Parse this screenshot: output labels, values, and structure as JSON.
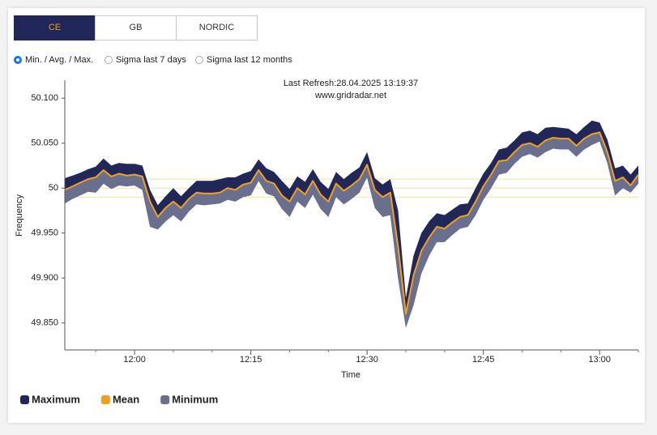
{
  "tabs": [
    "CE",
    "GB",
    "NORDIC"
  ],
  "options": [
    "Min. / Avg. / Max.",
    "Sigma last 7 days",
    "Sigma last 12 months"
  ],
  "chart_data": {
    "type": "band",
    "annotations": [
      "Last Refresh:28.04.2025 13:19:37",
      "www.gridradar.net"
    ],
    "xlabel": "Time",
    "ylabel": "Frequency",
    "x": [
      "11:51",
      "11:52",
      "11:53",
      "11:54",
      "11:55",
      "11:56",
      "11:57",
      "11:58",
      "11:59",
      "12:00",
      "12:01",
      "12:02",
      "12:03",
      "12:04",
      "12:05",
      "12:06",
      "12:07",
      "12:08",
      "12:09",
      "12:10",
      "12:11",
      "12:12",
      "12:13",
      "12:14",
      "12:15",
      "12:16",
      "12:17",
      "12:18",
      "12:19",
      "12:20",
      "12:21",
      "12:22",
      "12:23",
      "12:24",
      "12:25",
      "12:26",
      "12:27",
      "12:28",
      "12:29",
      "12:30",
      "12:31",
      "12:32",
      "12:33",
      "12:34",
      "12:35",
      "12:36",
      "12:37",
      "12:38",
      "12:39",
      "12:40",
      "12:41",
      "12:42",
      "12:43",
      "12:44",
      "12:45",
      "12:46",
      "12:47",
      "12:48",
      "12:49",
      "12:50",
      "12:51",
      "12:52",
      "12:53",
      "12:54",
      "12:55",
      "12:56",
      "12:57",
      "12:58",
      "12:59",
      "13:00",
      "13:01",
      "13:02",
      "13:03",
      "13:04",
      "13:05"
    ],
    "series": [
      {
        "name": "Maximum",
        "color": "#22275a",
        "values": [
          50.011,
          50.014,
          50.017,
          50.021,
          50.024,
          50.033,
          50.025,
          50.028,
          50.027,
          50.027,
          50.025,
          49.998,
          49.981,
          49.991,
          50.0,
          49.991,
          50.0,
          50.008,
          50.008,
          50.008,
          50.01,
          50.012,
          50.012,
          50.016,
          50.019,
          50.032,
          50.022,
          50.018,
          50.008,
          49.999,
          50.013,
          50.007,
          50.021,
          50.007,
          49.999,
          50.018,
          50.01,
          50.017,
          50.023,
          50.04,
          50.011,
          50.004,
          50.01,
          49.975,
          49.878,
          49.925,
          49.95,
          49.963,
          49.972,
          49.97,
          49.976,
          49.982,
          49.983,
          50.0,
          50.016,
          50.028,
          50.043,
          50.045,
          50.053,
          50.062,
          50.064,
          50.06,
          50.067,
          50.068,
          50.067,
          50.066,
          50.06,
          50.068,
          50.075,
          50.073,
          50.054,
          50.022,
          50.025,
          50.015,
          50.025
        ]
      },
      {
        "name": "Mean",
        "color": "#f0a020",
        "values": [
          49.998,
          50.002,
          50.006,
          50.01,
          50.012,
          50.02,
          50.013,
          50.016,
          50.014,
          50.015,
          50.013,
          49.985,
          49.968,
          49.978,
          49.985,
          49.978,
          49.988,
          49.995,
          49.994,
          49.994,
          49.995,
          50.0,
          49.998,
          50.004,
          50.006,
          50.02,
          50.008,
          50.005,
          49.992,
          49.985,
          50.0,
          49.993,
          50.008,
          49.993,
          49.985,
          50.005,
          49.997,
          50.003,
          50.01,
          50.026,
          49.998,
          49.99,
          49.995,
          49.935,
          49.86,
          49.903,
          49.93,
          49.945,
          49.957,
          49.955,
          49.962,
          49.968,
          49.97,
          49.985,
          50.002,
          50.015,
          50.03,
          50.031,
          50.04,
          50.048,
          50.05,
          50.046,
          50.053,
          50.056,
          50.055,
          50.055,
          50.047,
          50.055,
          50.06,
          50.062,
          50.04,
          50.008,
          50.012,
          50.003,
          50.015
        ]
      },
      {
        "name": "Minimum",
        "color": "#6b6f8e",
        "values": [
          49.983,
          49.988,
          49.992,
          49.996,
          49.995,
          50.005,
          49.999,
          50.003,
          50.002,
          50.003,
          49.998,
          49.957,
          49.954,
          49.963,
          49.97,
          49.963,
          49.974,
          49.982,
          49.981,
          49.982,
          49.983,
          49.987,
          49.985,
          49.99,
          49.992,
          50.008,
          49.994,
          49.991,
          49.977,
          49.968,
          49.985,
          49.978,
          49.993,
          49.977,
          49.968,
          49.99,
          49.982,
          49.988,
          49.995,
          50.012,
          49.978,
          49.968,
          49.97,
          49.9,
          49.845,
          49.87,
          49.905,
          49.925,
          49.94,
          49.94,
          49.948,
          49.955,
          49.957,
          49.97,
          49.987,
          50.0,
          50.015,
          50.017,
          50.027,
          50.035,
          50.038,
          50.034,
          50.04,
          50.044,
          50.043,
          50.043,
          50.035,
          50.043,
          50.048,
          50.052,
          50.028,
          49.992,
          50.0,
          49.995,
          50.005
        ]
      }
    ],
    "reference_lines": [
      50.01,
      50,
      49.99
    ],
    "reference_color": "#f5e29a",
    "xlim": [
      "11:51",
      "13:05"
    ],
    "xticks": [
      "12:00",
      "12:15",
      "12:30",
      "12:45",
      "13:00"
    ],
    "ylim": [
      49.82,
      50.12
    ],
    "yticks": [
      {
        "value": 49.85,
        "label": "49.850"
      },
      {
        "value": 49.9,
        "label": "49.900"
      },
      {
        "value": 49.95,
        "label": "49.950"
      },
      50,
      {
        "value": 50.05,
        "label": "50.050"
      },
      {
        "value": 50.1,
        "label": "50.100"
      }
    ],
    "legend": "bottom-left"
  }
}
